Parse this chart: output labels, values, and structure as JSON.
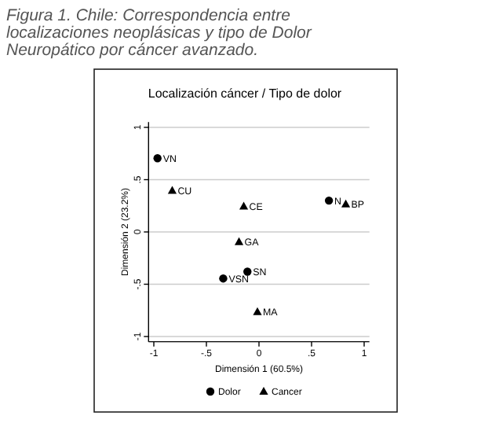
{
  "chart_data": {
    "type": "scatter",
    "title": "Localización cáncer / Tipo de dolor",
    "subtitle": "Figura 1. Chile: Correspondencia entre localizaciones neoplásicas y tipo de Dolor Neuropático por cáncer avanzado.",
    "xlabel": "Dimensión 1 (60.5%)",
    "ylabel": "Dimensión 2 (23.2%)",
    "series": [
      {
        "name": "Dolor",
        "color": "#000000",
        "marker": "circle",
        "x": [
          -0.965,
          0.665,
          -0.11,
          -0.34
        ],
        "values": [
          0.705,
          0.3,
          -0.38,
          -0.445
        ]
      },
      {
        "name": "Cancer",
        "color": "#000000",
        "marker": "triangle",
        "x": [
          -0.825,
          -0.145,
          0.825,
          -0.19,
          -0.015
        ],
        "values": [
          0.395,
          0.245,
          0.265,
          -0.095,
          -0.765
        ]
      }
    ],
    "annotations": [
      {
        "text": "VN",
        "x": -0.965,
        "y": 0.705
      },
      {
        "text": "N",
        "x": 0.665,
        "y": 0.3
      },
      {
        "text": "SN",
        "x": -0.11,
        "y": -0.38
      },
      {
        "text": "VSN",
        "x": -0.34,
        "y": -0.445
      },
      {
        "text": "CU",
        "x": -0.825,
        "y": 0.395
      },
      {
        "text": "CE",
        "x": -0.145,
        "y": 0.245
      },
      {
        "text": "BP",
        "x": 0.825,
        "y": 0.265
      },
      {
        "text": "GA",
        "x": -0.19,
        "y": -0.095
      },
      {
        "text": "MA",
        "x": -0.015,
        "y": -0.765
      }
    ],
    "xlim": [
      -1.05,
      1.05
    ],
    "ylim": [
      -1.05,
      1.05
    ],
    "xticks": [
      {
        "value": -1,
        "label": "-1"
      },
      {
        "value": -0.5,
        "label": "-.5"
      },
      0,
      {
        "value": 0.5,
        "label": ".5"
      },
      1
    ],
    "yticks": [
      {
        "value": -1,
        "label": "-1"
      },
      {
        "value": -0.5,
        "label": "-.5"
      },
      0,
      {
        "value": 0.5,
        "label": ".5"
      },
      1
    ],
    "grid": "y",
    "legend": "bottom"
  }
}
